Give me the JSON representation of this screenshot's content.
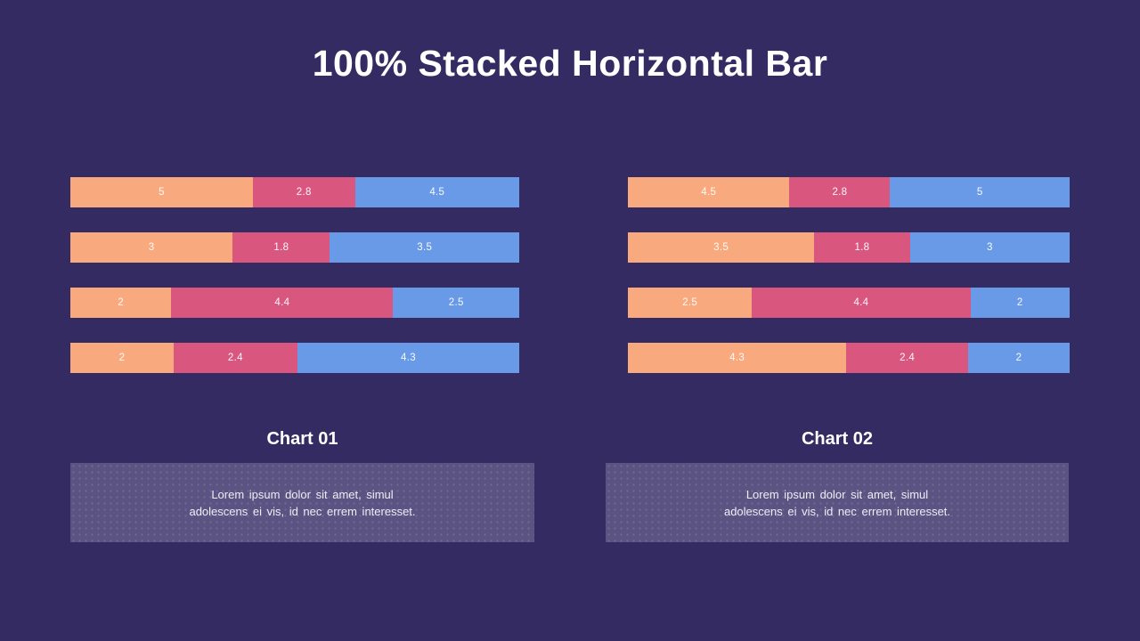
{
  "title": "100% Stacked Horizontal Bar",
  "colors": {
    "background": "#332B62",
    "series_orange": "#F9A97E",
    "series_pink": "#D9577F",
    "series_blue": "#699AE8",
    "panel": "#5B5483",
    "text": "#FFFFFF"
  },
  "chart_data": [
    {
      "type": "bar",
      "orientation": "horizontal",
      "stacked": "100%",
      "title": "Chart 01",
      "legend": "none",
      "axes": "none",
      "series": [
        {
          "name": "orange",
          "color": "#F9A97E"
        },
        {
          "name": "pink",
          "color": "#D9577F"
        },
        {
          "name": "blue",
          "color": "#699AE8"
        }
      ],
      "rows": [
        [
          5,
          2.8,
          4.5
        ],
        [
          3,
          1.8,
          3.5
        ],
        [
          2,
          4.4,
          2.5
        ],
        [
          2,
          2.4,
          4.3
        ]
      ],
      "description_lines": [
        "Lorem ipsum dolor sit amet, simul",
        "adolescens ei vis, id nec errem interesset."
      ]
    },
    {
      "type": "bar",
      "orientation": "horizontal",
      "stacked": "100%",
      "title": "Chart 02",
      "legend": "none",
      "axes": "none",
      "series": [
        {
          "name": "orange",
          "color": "#F9A97E"
        },
        {
          "name": "pink",
          "color": "#D9577F"
        },
        {
          "name": "blue",
          "color": "#699AE8"
        }
      ],
      "rows": [
        [
          4.5,
          2.8,
          5
        ],
        [
          3.5,
          1.8,
          3
        ],
        [
          2.5,
          4.4,
          2
        ],
        [
          4.3,
          2.4,
          2
        ]
      ],
      "description_lines": [
        "Lorem ipsum dolor sit amet, simul",
        "adolescens ei vis, id nec errem interesset."
      ]
    }
  ]
}
